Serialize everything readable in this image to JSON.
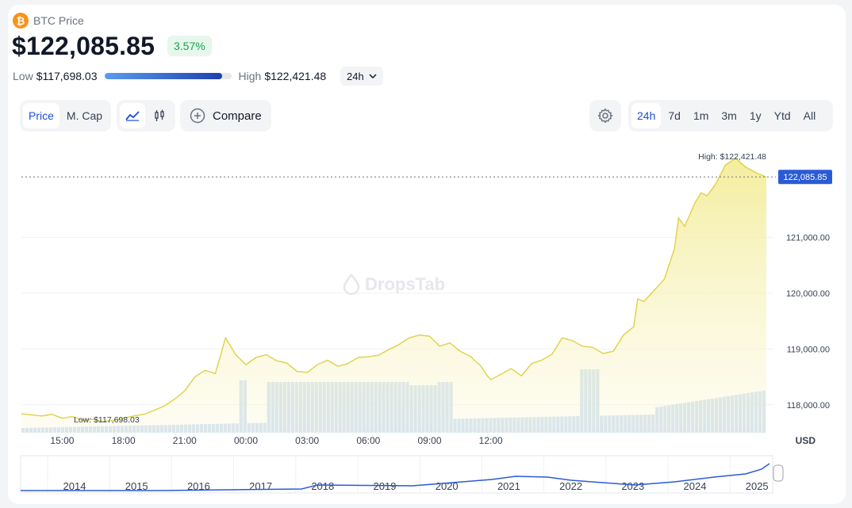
{
  "coin": {
    "name": "BTC Price",
    "icon": "bitcoin-icon",
    "symbol_glyph": "₿",
    "icon_color": "#f7931a"
  },
  "price": {
    "value": "$122,085.85",
    "change": "3.57%",
    "change_color": "#16a34a"
  },
  "range": {
    "low_label": "Low",
    "low_value": "$117,698.03",
    "high_label": "High",
    "high_value": "$122,421.48",
    "position_fraction": 0.93,
    "period": "24h"
  },
  "toolbar": {
    "metric_tabs": [
      "Price",
      "M. Cap"
    ],
    "active_metric": "Price",
    "compare_label": "Compare",
    "period_tabs": [
      "24h",
      "7d",
      "1m",
      "3m",
      "1y",
      "Ytd",
      "All"
    ],
    "active_period": "24h"
  },
  "chart_data": {
    "type": "area",
    "currency_label": "USD",
    "x_ticks": [
      "15:00",
      "18:00",
      "21:00",
      "00:00",
      "03:00",
      "06:00",
      "09:00",
      "12:00"
    ],
    "y_ticks": [
      "118,000.00",
      "119,000.00",
      "120,000.00",
      "121,000.00"
    ],
    "y_tick_values": [
      118000,
      119000,
      120000,
      121000
    ],
    "ylim": [
      117500,
      122700
    ],
    "current_price_label": "122,085.85",
    "current_price_value": 122085.85,
    "high_annotation": "High: $122,421.48",
    "low_annotation": "Low: $117,698.03",
    "x_hours": [
      0,
      1,
      1.5,
      2,
      2.5,
      3,
      3.5,
      4,
      4.5,
      5,
      5.5,
      6,
      6.5,
      7,
      7.5,
      8,
      8.5,
      9,
      9.5,
      10,
      10.5,
      11,
      11.5,
      12,
      12.5,
      13,
      13.5,
      14,
      14.5,
      15,
      15.5,
      16,
      16.5,
      17,
      17.5,
      18,
      18.5,
      19,
      19.5,
      20,
      20.5,
      21,
      21.5,
      22,
      22.2,
      22.5,
      22.8,
      23,
      23.5,
      24,
      24.5,
      25,
      25.5,
      26,
      26.5,
      27,
      27.5,
      28,
      28.5,
      29,
      29.5,
      30,
      30.2,
      30.5,
      31,
      31.5,
      32,
      32.2,
      32.5,
      32.8,
      33,
      33.3,
      33.6,
      34,
      34.5,
      35,
      35.2,
      35.5,
      35.8,
      36,
      36.5
    ],
    "price_values": [
      117840,
      117800,
      117830,
      117760,
      117790,
      117720,
      117740,
      117700,
      117720,
      117760,
      117800,
      117830,
      117900,
      117980,
      118100,
      118250,
      118500,
      118620,
      118560,
      119200,
      118900,
      118720,
      118850,
      118900,
      118790,
      118750,
      118600,
      118580,
      118720,
      118800,
      118690,
      118740,
      118850,
      118860,
      118890,
      118990,
      119080,
      119200,
      119250,
      119230,
      119050,
      119110,
      118960,
      118870,
      118800,
      118700,
      118530,
      118450,
      118550,
      118650,
      118520,
      118740,
      118800,
      118910,
      119200,
      119150,
      119050,
      119030,
      118920,
      118960,
      119250,
      119400,
      119900,
      119850,
      120050,
      120250,
      120800,
      121350,
      121200,
      121450,
      121620,
      121800,
      121750,
      121950,
      122300,
      122421,
      122350,
      122260,
      122200,
      122160,
      122085
    ],
    "volume_note": "volume bars shown as light blue columns"
  },
  "history": {
    "years": [
      "2014",
      "2015",
      "2016",
      "2017",
      "2018",
      "2019",
      "2020",
      "2021",
      "2022",
      "2023",
      "2024",
      "2025"
    ]
  }
}
